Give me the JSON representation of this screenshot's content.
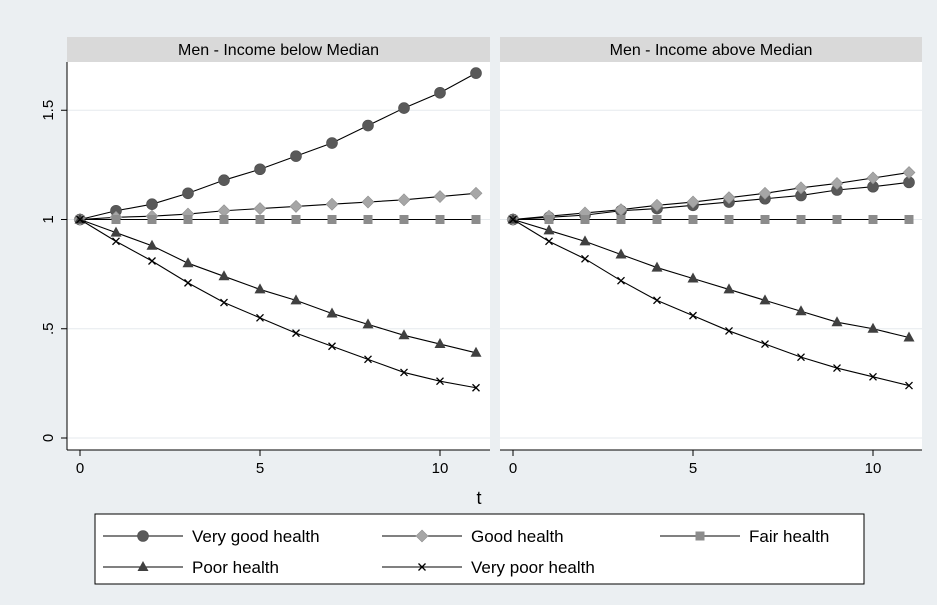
{
  "chart_data": {
    "type": "line",
    "xlabel": "t",
    "ylabel": "",
    "xlim": [
      0,
      11
    ],
    "ylim": [
      0,
      1.7
    ],
    "x_ticks": [
      0,
      5,
      10
    ],
    "x_tick_labels": [
      "0",
      "5",
      "10"
    ],
    "y_ticks": [
      0,
      0.5,
      1,
      1.5
    ],
    "y_tick_labels": [
      "0",
      ".5",
      "1",
      "1.5"
    ],
    "grid": true,
    "legend_position": "bottom",
    "x": [
      0,
      1,
      2,
      3,
      4,
      5,
      6,
      7,
      8,
      9,
      10,
      11
    ],
    "panels": [
      {
        "title": "Men - Income below Median",
        "series": [
          {
            "name": "Very good health",
            "marker": "circle",
            "color": "#595959",
            "values": [
              1.0,
              1.04,
              1.07,
              1.12,
              1.18,
              1.23,
              1.29,
              1.35,
              1.43,
              1.51,
              1.58,
              1.67
            ]
          },
          {
            "name": "Good health",
            "marker": "diamond",
            "color": "#a6a6a6",
            "values": [
              1.0,
              1.01,
              1.015,
              1.025,
              1.04,
              1.05,
              1.06,
              1.07,
              1.08,
              1.09,
              1.105,
              1.12
            ]
          },
          {
            "name": "Fair health",
            "marker": "square",
            "color": "#8c8c8c",
            "values": [
              1.0,
              1.0,
              1.0,
              1.0,
              1.0,
              1.0,
              1.0,
              1.0,
              1.0,
              1.0,
              1.0,
              1.0
            ]
          },
          {
            "name": "Poor health",
            "marker": "triangle",
            "color": "#404040",
            "values": [
              1.0,
              0.94,
              0.88,
              0.8,
              0.74,
              0.68,
              0.63,
              0.57,
              0.52,
              0.47,
              0.43,
              0.39
            ]
          },
          {
            "name": "Very poor health",
            "marker": "x",
            "color": "#000000",
            "values": [
              1.0,
              0.9,
              0.81,
              0.71,
              0.62,
              0.55,
              0.48,
              0.42,
              0.36,
              0.3,
              0.26,
              0.23
            ]
          }
        ]
      },
      {
        "title": "Men - Income above Median",
        "series": [
          {
            "name": "Very good health",
            "marker": "circle",
            "color": "#595959",
            "values": [
              1.0,
              1.01,
              1.02,
              1.04,
              1.05,
              1.065,
              1.08,
              1.095,
              1.11,
              1.135,
              1.15,
              1.17
            ]
          },
          {
            "name": "Good health",
            "marker": "diamond",
            "color": "#a6a6a6",
            "values": [
              1.0,
              1.015,
              1.03,
              1.045,
              1.065,
              1.08,
              1.1,
              1.12,
              1.145,
              1.165,
              1.19,
              1.215
            ]
          },
          {
            "name": "Fair health",
            "marker": "square",
            "color": "#8c8c8c",
            "values": [
              1.0,
              1.0,
              1.0,
              1.0,
              1.0,
              1.0,
              1.0,
              1.0,
              1.0,
              1.0,
              1.0,
              1.0
            ]
          },
          {
            "name": "Poor health",
            "marker": "triangle",
            "color": "#404040",
            "values": [
              1.0,
              0.95,
              0.9,
              0.84,
              0.78,
              0.73,
              0.68,
              0.63,
              0.58,
              0.53,
              0.5,
              0.46
            ]
          },
          {
            "name": "Very poor health",
            "marker": "x",
            "color": "#000000",
            "values": [
              1.0,
              0.9,
              0.82,
              0.72,
              0.63,
              0.56,
              0.49,
              0.43,
              0.37,
              0.32,
              0.28,
              0.24
            ]
          }
        ]
      }
    ],
    "legend": [
      "Very good health",
      "Good health",
      "Fair health",
      "Poor health",
      "Very poor health"
    ]
  }
}
